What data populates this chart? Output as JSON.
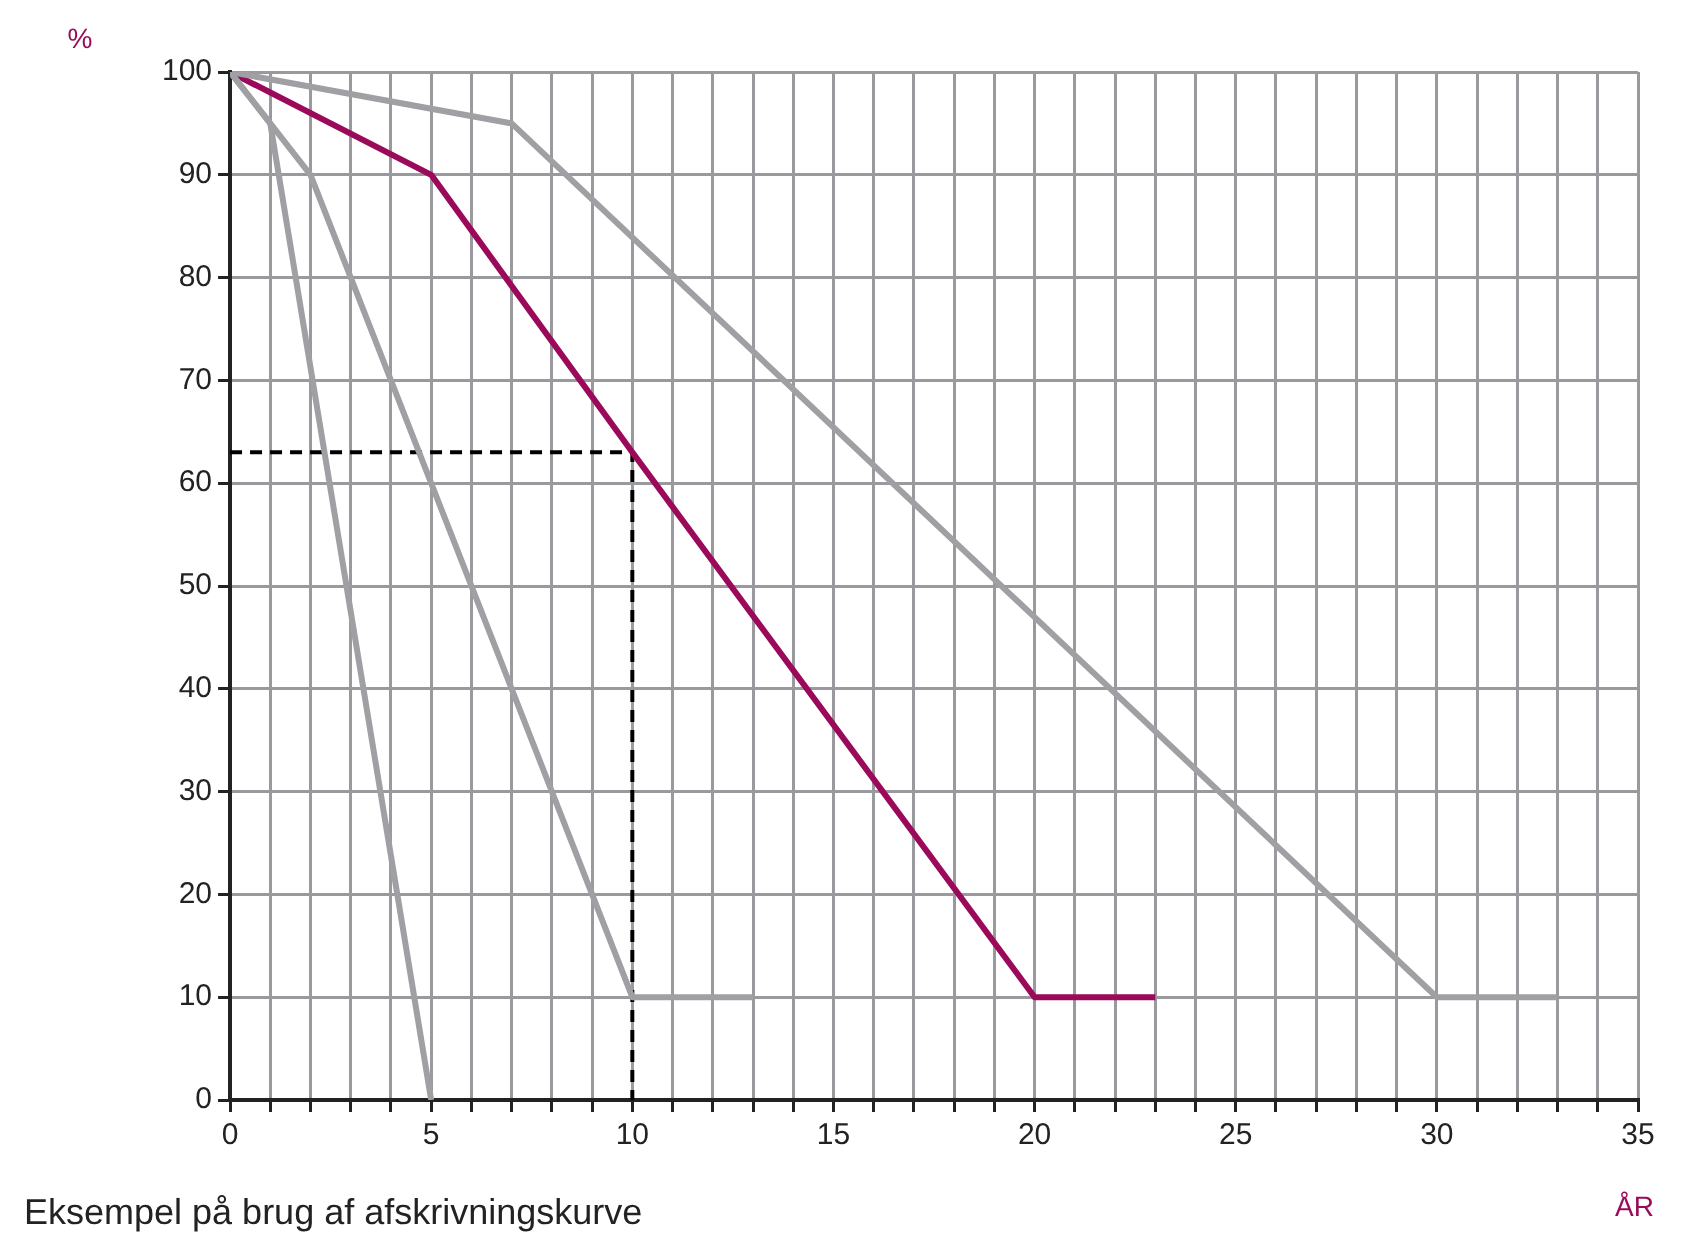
{
  "chart_data": {
    "type": "line",
    "title": "Eksempel på brug af afskrivningskurve",
    "xlabel": "ÅR",
    "ylabel": "%",
    "xlim": [
      0,
      35
    ],
    "ylim": [
      0,
      100
    ],
    "xticks": [
      0,
      {
        "value": 1,
        "label": null
      },
      {
        "value": 2,
        "label": null
      },
      {
        "value": 3,
        "label": null
      },
      {
        "value": 4,
        "label": null
      },
      5,
      {
        "value": 6,
        "label": null
      },
      {
        "value": 7,
        "label": null
      },
      {
        "value": 8,
        "label": null
      },
      {
        "value": 9,
        "label": null
      },
      10,
      {
        "value": 11,
        "label": null
      },
      {
        "value": 12,
        "label": null
      },
      {
        "value": 13,
        "label": null
      },
      {
        "value": 14,
        "label": null
      },
      15,
      {
        "value": 16,
        "label": null
      },
      {
        "value": 17,
        "label": null
      },
      {
        "value": 18,
        "label": null
      },
      {
        "value": 19,
        "label": null
      },
      20,
      {
        "value": 21,
        "label": null
      },
      {
        "value": 22,
        "label": null
      },
      {
        "value": 23,
        "label": null
      },
      {
        "value": 24,
        "label": null
      },
      25,
      {
        "value": 26,
        "label": null
      },
      {
        "value": 27,
        "label": null
      },
      {
        "value": 28,
        "label": null
      },
      {
        "value": 29,
        "label": null
      },
      30,
      {
        "value": 31,
        "label": null
      },
      {
        "value": 32,
        "label": null
      },
      {
        "value": 33,
        "label": null
      },
      {
        "value": 34,
        "label": null
      },
      35
    ],
    "yticks": [
      0,
      10,
      20,
      30,
      40,
      50,
      60,
      70,
      80,
      90,
      100
    ],
    "grid": true,
    "marker": "none",
    "legend": false,
    "series": [
      {
        "color": "#a0a0a4",
        "x": [
          0,
          1,
          5
        ],
        "values": [
          100,
          95,
          0
        ]
      },
      {
        "color": "#a0a0a4",
        "x": [
          0,
          1,
          2,
          10,
          13
        ],
        "values": [
          100,
          95,
          90,
          10,
          10
        ]
      },
      {
        "color": "#a0a0a4",
        "x": [
          0,
          7,
          30,
          33
        ],
        "values": [
          100,
          95,
          10,
          10
        ]
      },
      {
        "color": "#9b0a5a",
        "x": [
          0,
          5,
          10,
          20,
          23
        ],
        "values": [
          100,
          90,
          63,
          10,
          10
        ]
      },
      {
        "color": "#000000",
        "line_style": "dashed",
        "x": [
          0,
          10,
          10
        ],
        "values": [
          63,
          63,
          0
        ]
      }
    ]
  }
}
